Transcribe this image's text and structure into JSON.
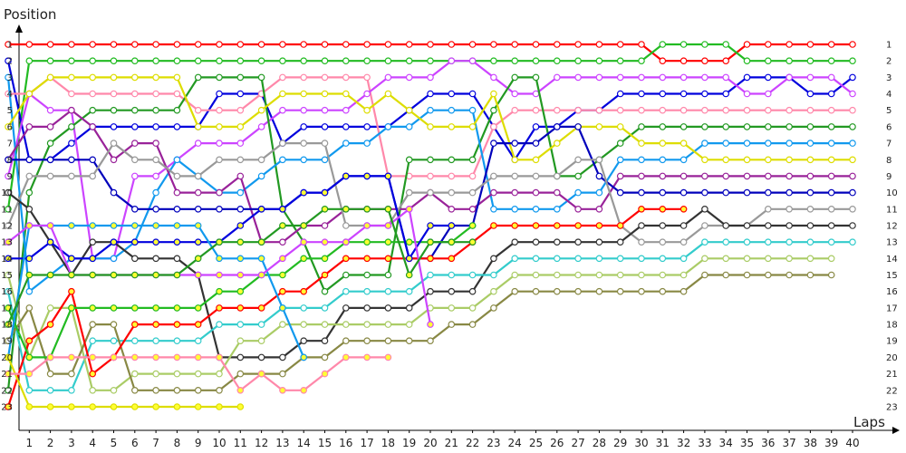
{
  "chart_data": {
    "type": "line",
    "ylabel": "Position",
    "xlabel": "Laps",
    "x_ticks": [
      1,
      2,
      3,
      4,
      5,
      6,
      7,
      8,
      9,
      10,
      11,
      12,
      13,
      14,
      15,
      16,
      17,
      18,
      19,
      20,
      21,
      22,
      23,
      24,
      25,
      26,
      27,
      28,
      29,
      30,
      31,
      32,
      33,
      34,
      35,
      36,
      37,
      38,
      39,
      40
    ],
    "y_ticks": [
      1,
      2,
      3,
      4,
      5,
      6,
      7,
      8,
      9,
      10,
      11,
      12,
      13,
      14,
      15,
      16,
      17,
      18,
      19,
      20,
      21,
      22,
      23
    ],
    "x_range": [
      0,
      40.5
    ],
    "y_range": [
      1,
      23
    ],
    "y_inverted": true,
    "grid": false,
    "series": [
      {
        "color": "#ff0000",
        "marker_fill": "#ffffff",
        "values": [
          1,
          1,
          1,
          1,
          1,
          1,
          1,
          1,
          1,
          1,
          1,
          1,
          1,
          1,
          1,
          1,
          1,
          1,
          1,
          1,
          1,
          1,
          1,
          1,
          1,
          1,
          1,
          1,
          1,
          1,
          1,
          2,
          2,
          2,
          2,
          1,
          1,
          1,
          1,
          1,
          1
        ]
      },
      {
        "color": "#22bb22",
        "marker_fill": "#ffffff",
        "values": [
          11,
          2,
          2,
          2,
          2,
          2,
          2,
          2,
          2,
          2,
          2,
          2,
          2,
          2,
          2,
          2,
          2,
          2,
          2,
          2,
          2,
          2,
          2,
          2,
          2,
          2,
          2,
          2,
          2,
          2,
          2,
          1,
          1,
          1,
          1,
          2,
          2,
          2,
          2,
          2,
          2
        ]
      },
      {
        "color": "#0000dd",
        "marker_fill": "#ffffff",
        "values": [
          2,
          8,
          8,
          7,
          6,
          6,
          6,
          6,
          6,
          6,
          4,
          4,
          4,
          7,
          6,
          6,
          6,
          6,
          6,
          5,
          4,
          4,
          4,
          6,
          8,
          6,
          6,
          5,
          5,
          4,
          4,
          4,
          4,
          4,
          4,
          3,
          3,
          3,
          4,
          4,
          3
        ]
      },
      {
        "color": "#ff88aa",
        "marker_fill": "#ffffff",
        "values": [
          4,
          4,
          3,
          4,
          4,
          4,
          4,
          4,
          4,
          5,
          5,
          5,
          4,
          3,
          3,
          3,
          3,
          3,
          9,
          9,
          9,
          9,
          9,
          6,
          5,
          5,
          5,
          5,
          5,
          5,
          5,
          5,
          5,
          5,
          5,
          5,
          5,
          5,
          5,
          5,
          5
        ]
      },
      {
        "color": "#cc44ff",
        "marker_fill": "#ffffff",
        "values": [
          9,
          4,
          5,
          5,
          14,
          14,
          9,
          9,
          8,
          7,
          7,
          7,
          6,
          5,
          5,
          5,
          5,
          4,
          3,
          3,
          3,
          2,
          2,
          3,
          4,
          4,
          3,
          3,
          3,
          3,
          3,
          3,
          3,
          3,
          3,
          4,
          4,
          3,
          3,
          3,
          4
        ]
      },
      {
        "color": "#229922",
        "marker_fill": "#ffffff",
        "values": [
          22,
          10,
          7,
          6,
          5,
          5,
          5,
          5,
          5,
          3,
          3,
          3,
          3,
          11,
          13,
          16,
          15,
          15,
          15,
          8,
          8,
          8,
          8,
          5,
          3,
          3,
          9,
          9,
          8,
          7,
          6,
          6,
          6,
          6,
          6,
          6,
          6,
          6,
          6,
          6,
          6
        ]
      },
      {
        "color": "#1199ee",
        "marker_fill": "#ffffff",
        "values": [
          3,
          16,
          15,
          14,
          14,
          14,
          13,
          10,
          8,
          9,
          10,
          10,
          9,
          8,
          8,
          8,
          7,
          7,
          6,
          6,
          5,
          5,
          5,
          11,
          11,
          11,
          11,
          10,
          10,
          8,
          8,
          8,
          8,
          7,
          7,
          7,
          7,
          7,
          7,
          7,
          7
        ]
      },
      {
        "color": "#dddd00",
        "marker_fill": "#ffffff",
        "values": [
          6,
          4,
          3,
          3,
          3,
          3,
          3,
          3,
          3,
          6,
          6,
          6,
          5,
          4,
          4,
          4,
          4,
          5,
          4,
          5,
          6,
          6,
          6,
          4,
          8,
          8,
          7,
          6,
          6,
          6,
          7,
          7,
          7,
          8,
          8,
          8,
          8,
          8,
          8,
          8,
          8
        ]
      },
      {
        "color": "#992299",
        "marker_fill": "#ffffff",
        "values": [
          8,
          6,
          6,
          5,
          6,
          8,
          7,
          7,
          10,
          10,
          10,
          9,
          13,
          13,
          12,
          12,
          11,
          11,
          11,
          11,
          10,
          11,
          11,
          10,
          10,
          10,
          10,
          11,
          11,
          9,
          9,
          9,
          9,
          9,
          9,
          9,
          9,
          9,
          9,
          9,
          9
        ]
      },
      {
        "color": "#0000bb",
        "marker_fill": "#ffffff",
        "values": [
          8,
          8,
          8,
          8,
          8,
          10,
          11,
          11,
          11,
          11,
          11,
          11,
          11,
          11,
          10,
          10,
          9,
          9,
          9,
          14,
          14,
          12,
          12,
          7,
          7,
          7,
          6,
          6,
          9,
          10,
          10,
          10,
          10,
          10,
          10,
          10,
          10,
          10,
          10,
          10,
          10
        ]
      },
      {
        "color": "#999999",
        "marker_fill": "#ffffff",
        "values": [
          12,
          9,
          9,
          9,
          9,
          7,
          8,
          8,
          9,
          9,
          8,
          8,
          8,
          7,
          7,
          7,
          12,
          12,
          12,
          10,
          10,
          10,
          10,
          9,
          9,
          9,
          9,
          8,
          8,
          12,
          13,
          13,
          13,
          12,
          12,
          12,
          11,
          11,
          11,
          11,
          11
        ]
      },
      {
        "color": "#333333",
        "marker_fill": "#ffffff",
        "values": [
          10,
          11,
          13,
          15,
          13,
          13,
          14,
          14,
          14,
          15,
          20,
          20,
          20,
          20,
          19,
          19,
          17,
          17,
          17,
          17,
          16,
          16,
          16,
          14,
          13,
          13,
          13,
          13,
          13,
          13,
          12,
          12,
          12,
          11,
          12,
          12,
          12,
          12,
          12,
          12,
          12
        ]
      },
      {
        "color": "#33cccc",
        "marker_fill": "#ffffff",
        "values": [
          16,
          22,
          22,
          22,
          19,
          19,
          19,
          19,
          19,
          19,
          18,
          18,
          18,
          17,
          17,
          17,
          16,
          16,
          16,
          16,
          15,
          15,
          15,
          15,
          14,
          14,
          14,
          14,
          14,
          14,
          14,
          14,
          14,
          13,
          13,
          13,
          13,
          13,
          13,
          13,
          13
        ]
      },
      {
        "color": "#aacc66",
        "marker_fill": "#ffffff",
        "values": [
          15,
          20,
          17,
          17,
          22,
          22,
          21,
          21,
          21,
          21,
          21,
          19,
          19,
          18,
          18,
          18,
          18,
          18,
          18,
          18,
          17,
          17,
          17,
          16,
          15,
          15,
          15,
          15,
          15,
          15,
          15,
          15,
          15,
          14,
          14,
          14,
          14,
          14,
          14,
          14
        ]
      },
      {
        "color": "#888844",
        "marker_fill": "#ffffff",
        "values": [
          19,
          17,
          21,
          21,
          18,
          18,
          22,
          22,
          22,
          22,
          22,
          21,
          21,
          21,
          20,
          20,
          19,
          19,
          19,
          19,
          19,
          18,
          18,
          17,
          16,
          16,
          16,
          16,
          16,
          16,
          16,
          16,
          16,
          15,
          15,
          15,
          15,
          15,
          15,
          15
        ]
      },
      {
        "color": "#ff0000",
        "marker_fill": "#ffff33",
        "values": [
          23,
          19,
          18,
          16,
          21,
          20,
          18,
          18,
          18,
          18,
          17,
          17,
          17,
          16,
          16,
          15,
          14,
          14,
          14,
          14,
          14,
          14,
          13,
          12,
          12,
          12,
          12,
          12,
          12,
          12,
          11,
          11,
          11
        ]
      },
      {
        "color": "#22bb22",
        "marker_fill": "#ffff33",
        "values": [
          17,
          20,
          20,
          17,
          17,
          17,
          17,
          17,
          17,
          17,
          16,
          16,
          15,
          15,
          14,
          14,
          13,
          13,
          13,
          13,
          13,
          13,
          12
        ]
      },
      {
        "color": "#0000dd",
        "marker_fill": "#ffff33",
        "values": [
          14,
          14,
          13,
          14,
          14,
          13,
          13,
          13,
          13,
          13,
          13,
          12,
          11,
          11,
          10,
          10,
          9,
          9,
          9,
          14,
          12,
          12
        ]
      },
      {
        "color": "#1199ee",
        "marker_fill": "#ffff33",
        "values": [
          20,
          12,
          12,
          12,
          12,
          12,
          12,
          12,
          12,
          12,
          14,
          14,
          14,
          17,
          20
        ]
      },
      {
        "color": "#dddd00",
        "marker_fill": "#ffff33",
        "values": [
          20,
          23,
          23,
          23,
          23,
          23,
          23,
          23,
          23,
          23,
          23,
          23
        ]
      },
      {
        "color": "#cc44ff",
        "marker_fill": "#ffff33",
        "values": [
          13,
          12,
          12,
          15,
          15,
          15,
          15,
          15,
          15,
          15,
          15,
          15,
          15,
          14,
          13,
          13,
          13,
          12,
          12,
          11,
          18
        ]
      },
      {
        "color": "#229922",
        "marker_fill": "#ffff33",
        "values": [
          18,
          15,
          15,
          15,
          15,
          15,
          15,
          15,
          15,
          14,
          13,
          13,
          13,
          12,
          12,
          11,
          11,
          11,
          11,
          15,
          13,
          13,
          13
        ]
      },
      {
        "color": "#ff88aa",
        "marker_fill": "#ffff33",
        "values": [
          21,
          21,
          20,
          20,
          20,
          20,
          20,
          20,
          20,
          20,
          20,
          22,
          21,
          22,
          22,
          21,
          20,
          20,
          20
        ]
      }
    ]
  }
}
